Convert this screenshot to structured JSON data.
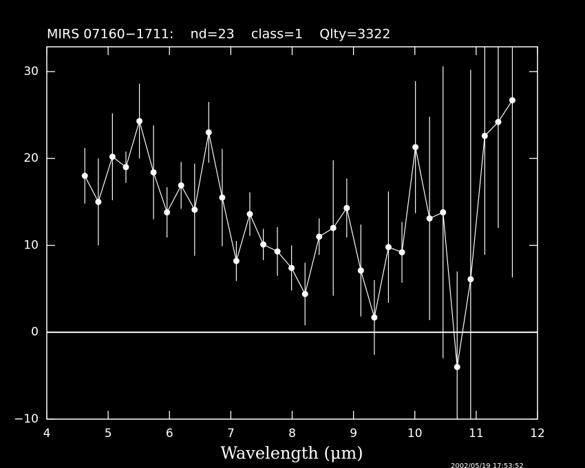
{
  "chart_data": {
    "type": "errorbar",
    "title": "MIRS 07160−1711:    nd=23    class=1    Qlty=3322",
    "x_label": "Wavelength (μm)",
    "timestamp": "2002/05/19 17:53:52",
    "x": [
      4.62,
      4.84,
      5.07,
      5.29,
      5.51,
      5.74,
      5.96,
      6.19,
      6.41,
      6.64,
      6.86,
      7.09,
      7.31,
      7.53,
      7.76,
      7.99,
      8.21,
      8.44,
      8.67,
      8.89,
      9.12,
      9.34,
      9.57,
      9.79,
      10.01,
      10.24,
      10.46,
      10.69,
      10.91,
      11.14,
      11.36,
      11.59
    ],
    "y": [
      18.0,
      15.0,
      20.2,
      19.0,
      24.3,
      18.4,
      13.8,
      16.9,
      14.1,
      23.0,
      15.5,
      8.2,
      13.6,
      10.1,
      9.3,
      7.4,
      4.4,
      11.0,
      12.0,
      14.3,
      7.1,
      1.7,
      9.8,
      9.2,
      21.3,
      13.1,
      13.8,
      -4.0,
      6.1,
      22.6,
      24.2,
      26.7
    ],
    "errors": [
      3.2,
      5.0,
      5.0,
      1.8,
      4.3,
      5.4,
      2.9,
      2.7,
      5.3,
      3.5,
      5.6,
      2.3,
      2.5,
      1.8,
      2.8,
      2.6,
      3.6,
      2.1,
      7.8,
      3.4,
      5.3,
      4.3,
      6.4,
      3.5,
      7.6,
      11.7,
      16.8,
      11.0,
      24.1,
      13.7,
      12.2,
      20.4
    ],
    "color": "#ffffff",
    "xlim": [
      4,
      12
    ],
    "ylim": [
      -10,
      32.85
    ],
    "xticks": [
      4,
      5,
      6,
      7,
      8,
      9,
      10,
      11,
      12
    ],
    "yticks": [
      {
        "value": -10,
        "label": "−10"
      },
      0,
      10,
      20,
      30
    ],
    "zero_line": true
  }
}
